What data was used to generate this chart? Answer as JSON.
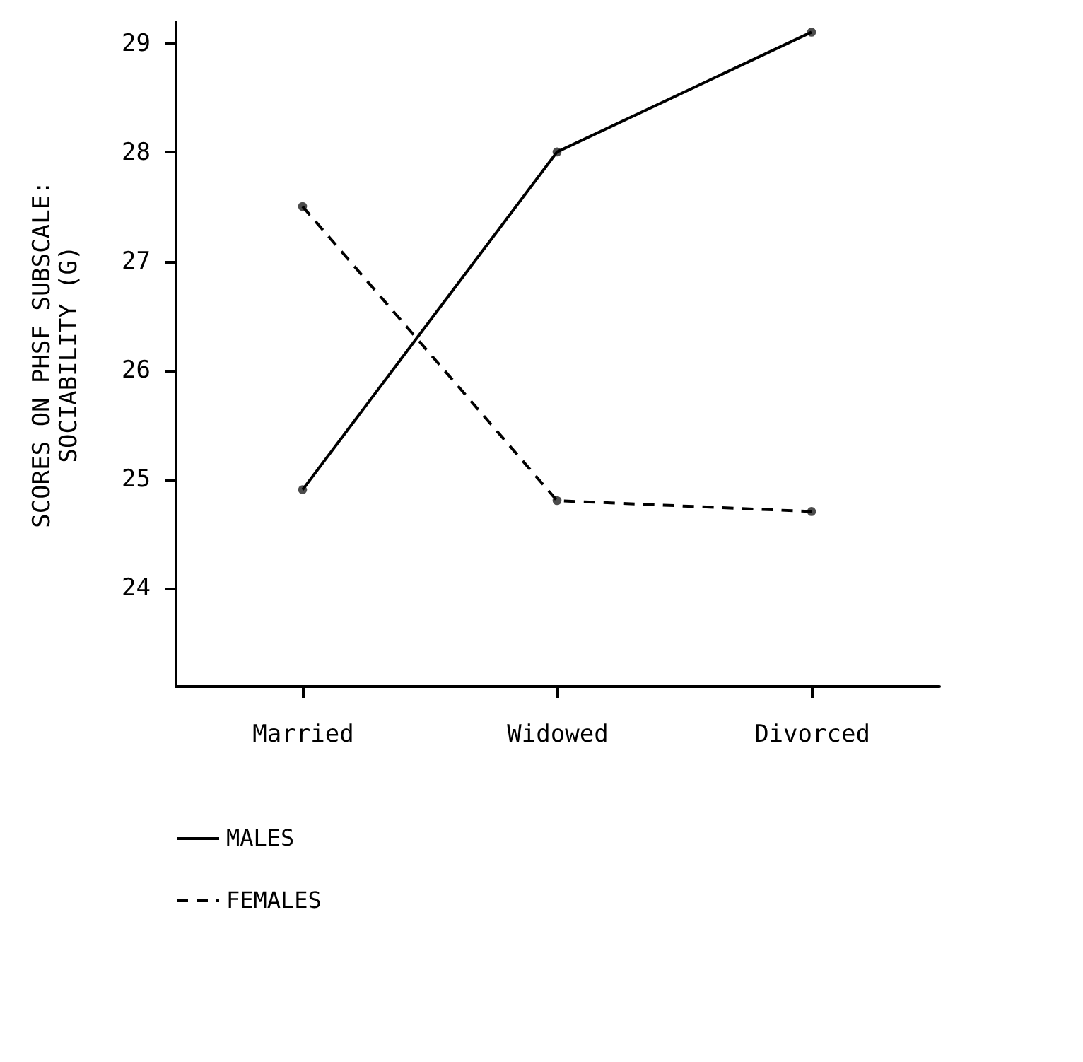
{
  "chart_data": {
    "type": "line",
    "ylabel": "SCORES ON PHSF SUBSCALE:\nSOCIABILITY (G)",
    "categories": [
      "Married",
      "Widowed",
      "Divorced"
    ],
    "series": [
      {
        "name": "MALES",
        "color": "#000000",
        "values": [
          24.9,
          28.0,
          29.1
        ],
        "line_style": "solid"
      },
      {
        "name": "FEMALES",
        "color": "#000000",
        "values": [
          27.5,
          24.8,
          24.7
        ],
        "line_style": "dashed"
      }
    ],
    "ylim": [
      23.1,
      29.2
    ],
    "yticks": [
      24,
      25,
      26,
      27,
      28,
      29
    ],
    "grid": false,
    "legend": "bottom",
    "marker": "circle"
  }
}
